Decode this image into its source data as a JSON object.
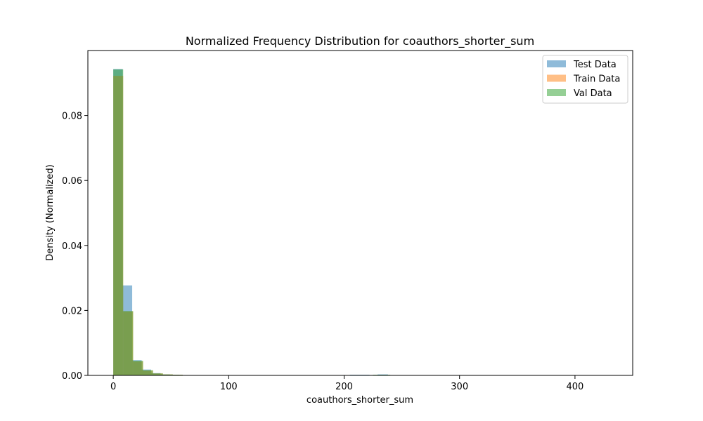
{
  "chart_data": {
    "type": "histogram",
    "title": "Normalized Frequency Distribution for coauthors_shorter_sum",
    "xlabel": "coauthors_shorter_sum",
    "ylabel": "Density (Normalized)",
    "xlim": [
      -22,
      450
    ],
    "ylim": [
      0,
      0.1
    ],
    "xticks": [
      0,
      100,
      200,
      300,
      400
    ],
    "yticks": [
      0.0,
      0.02,
      0.04,
      0.06,
      0.08
    ],
    "ytick_labels": [
      "0.00",
      "0.02",
      "0.04",
      "0.06",
      "0.08"
    ],
    "legend_position": "top-right",
    "opacity": 0.5,
    "series": [
      {
        "name": "Test Data",
        "color": "#1f77b4",
        "bin_edges": [
          0,
          8.2,
          16.4,
          24.6,
          32.8,
          41.0,
          49.2,
          57.4,
          65.6
        ],
        "values": [
          0.0943,
          0.0277,
          0.0047,
          0.0018,
          0.0007,
          0.0003,
          0.0002,
          0.0001
        ],
        "extra_bins": [
          {
            "x0": 205,
            "x1": 222,
            "value": 0.0002
          },
          {
            "x0": 229,
            "x1": 238,
            "value": 0.0003
          }
        ]
      },
      {
        "name": "Train Data",
        "color": "#ff7f0e",
        "bin_edges": [
          0,
          8.6,
          17.2,
          25.8,
          34.4,
          43.0,
          51.6,
          60.2,
          68.8
        ],
        "values": [
          0.0922,
          0.0197,
          0.0043,
          0.0015,
          0.0006,
          0.0003,
          0.0002,
          0.0001
        ],
        "extra_bins": []
      },
      {
        "name": "Val Data",
        "color": "#2ca02c",
        "bin_edges": [
          0,
          8.6,
          17.2,
          25.8,
          34.4,
          43.0,
          51.6,
          60.2,
          68.8
        ],
        "values": [
          0.0942,
          0.0198,
          0.0045,
          0.0016,
          0.0006,
          0.0003,
          0.0002,
          0.0001
        ],
        "extra_bins": [
          {
            "x0": 225,
            "x1": 240,
            "value": 0.0002
          }
        ]
      }
    ]
  }
}
